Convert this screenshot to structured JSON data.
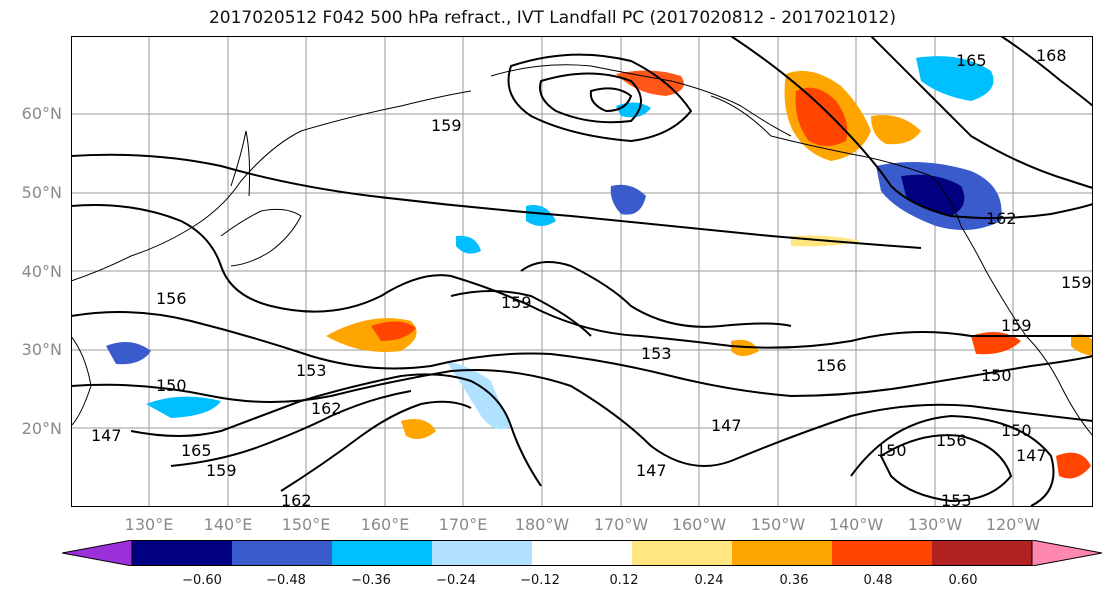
{
  "title": "2017020512 F042 500 hPa refract., IVT Landfall PC (2017020812 - 2017021012)",
  "lat_ticks": [
    "60°N",
    "50°N",
    "40°N",
    "30°N",
    "20°N"
  ],
  "lon_ticks": [
    "130°E",
    "140°E",
    "150°E",
    "160°E",
    "170°E",
    "180°W",
    "170°W",
    "160°W",
    "150°W",
    "140°W",
    "130°W",
    "120°W"
  ],
  "contour_labels": [
    "165",
    "168",
    "159",
    "162",
    "156",
    "159",
    "159",
    "153",
    "150",
    "153",
    "156",
    "150",
    "147",
    "162",
    "165",
    "159",
    "147",
    "162",
    "147",
    "150",
    "156",
    "150",
    "147",
    "153",
    "159"
  ],
  "colorbar": {
    "ticks": [
      "−0.60",
      "−0.48",
      "−0.36",
      "−0.24",
      "−0.12",
      "0.12",
      "0.24",
      "0.36",
      "0.48",
      "0.60"
    ],
    "colors": [
      "#9b30d9",
      "#000080",
      "#3a5bcc",
      "#00bfff",
      "#b0e2ff",
      "#ffffff",
      "#ffe680",
      "#ffa500",
      "#ff4500",
      "#b22222",
      "#ff88b0"
    ]
  }
}
